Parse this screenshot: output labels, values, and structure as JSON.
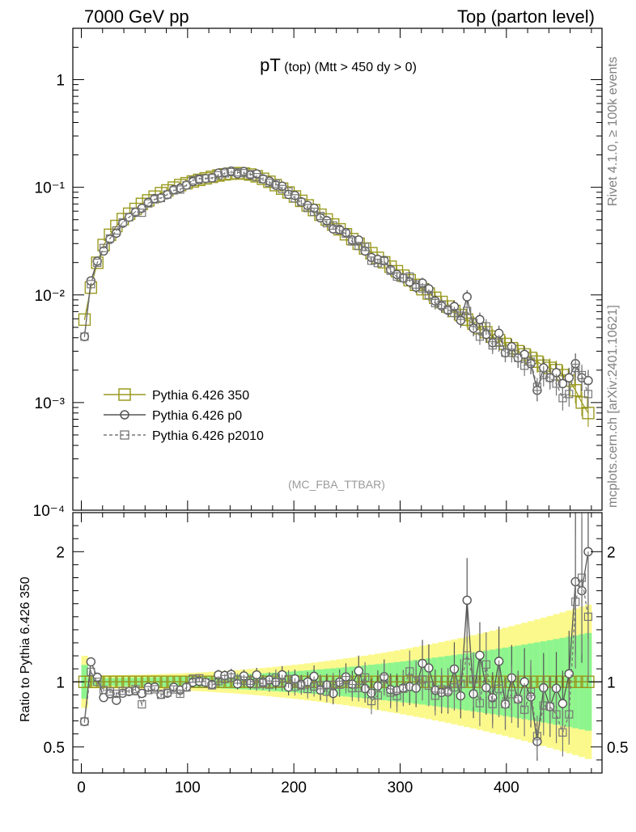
{
  "header": {
    "left": "7000 GeV pp",
    "right": "Top (parton level)"
  },
  "plot_title": {
    "main": "pT",
    "sub1": "(top)",
    "sub2": "(Mtt > 450 dy > 0)"
  },
  "watermark": "(MC_FBA_TTBAR)",
  "side_label_1": "Rivet 4.1.0, ≥ 100k events",
  "side_label_2": "mcplots.cern.ch [arXiv:2401.10621]",
  "ratio_ylabel": "Ratio to Pythia 6.426 350",
  "colors": {
    "s350": "#9a9a20",
    "p0": "#555555",
    "p2010": "#777777",
    "band_yellow": "#fbf98c",
    "band_green": "#8ef58e"
  },
  "chart_data": {
    "type": "line",
    "x": [
      3.0,
      9.0,
      15.0,
      21.0,
      27.0,
      33.0,
      39.0,
      45.0,
      51.0,
      57.0,
      63.0,
      69.0,
      75.0,
      81.0,
      87.0,
      93.0,
      99.0,
      105.0,
      111.0,
      117.0,
      123.0,
      129.0,
      135.0,
      141.0,
      147.0,
      153.0,
      159.0,
      165.0,
      171.0,
      177.0,
      183.0,
      189.0,
      195.0,
      201.0,
      207.0,
      213.0,
      219.0,
      225.0,
      231.0,
      237.0,
      243.0,
      249.0,
      255.0,
      261.0,
      267.0,
      273.0,
      279.0,
      285.0,
      291.0,
      297.0,
      303.0,
      309.0,
      315.0,
      321.0,
      327.0,
      333.0,
      339.0,
      345.0,
      351.0,
      357.0,
      363.0,
      369.0,
      375.0,
      381.0,
      387.0,
      393.0,
      399.0,
      405.0,
      411.0,
      417.0,
      423.0,
      429.0,
      435.0,
      441.0,
      447.0,
      453.0,
      459.0,
      465.0,
      471.0,
      477.0
    ],
    "xlim": [
      -8,
      490
    ],
    "x_ticks": [
      0,
      100,
      200,
      300,
      400
    ],
    "upper_yscale": "log",
    "upper_ylim": [
      0.0001,
      3.0
    ],
    "upper_tick_labels": [
      "10⁻⁴",
      "10⁻³",
      "10⁻²",
      "10⁻¹",
      "1"
    ],
    "ratio_ylim": [
      0.3,
      2.3
    ],
    "ratio_ticks": [
      0.5,
      1,
      2
    ],
    "ratio_tick_labels": [
      "0.5",
      "1",
      "2"
    ],
    "series": [
      {
        "name": "Pythia 6.426 350",
        "style": "solid-square",
        "values": [
          0.0059,
          0.0117,
          0.0199,
          0.0291,
          0.0362,
          0.0437,
          0.0507,
          0.0568,
          0.0629,
          0.0701,
          0.0756,
          0.0819,
          0.0883,
          0.0935,
          0.0993,
          0.1049,
          0.1091,
          0.1133,
          0.1172,
          0.1211,
          0.1251,
          0.1287,
          0.1318,
          0.1338,
          0.1353,
          0.1341,
          0.1313,
          0.1265,
          0.1199,
          0.1126,
          0.1047,
          0.0972,
          0.0895,
          0.0821,
          0.0748,
          0.0679,
          0.0614,
          0.0556,
          0.0502,
          0.0451,
          0.0407,
          0.0366,
          0.033,
          0.0299,
          0.027,
          0.0244,
          0.0221,
          0.0201,
          0.0183,
          0.0166,
          0.0151,
          0.0137,
          0.0124,
          0.0113,
          0.0103,
          0.0094,
          0.0086,
          0.0078,
          0.0071,
          0.0065,
          0.0059,
          0.0054,
          0.0049,
          0.0045,
          0.0041,
          0.0038,
          0.0035,
          0.0032,
          0.003,
          0.0028,
          0.0026,
          0.0024,
          0.0022,
          0.0021,
          0.002,
          0.0018,
          0.0016,
          0.0013,
          0.001,
          0.0008
        ]
      },
      {
        "name": "Pythia 6.426 p0",
        "style": "solid-circle",
        "values": [
          0.0041,
          0.0135,
          0.0206,
          0.0256,
          0.0329,
          0.0375,
          0.0463,
          0.0526,
          0.0586,
          0.0639,
          0.0725,
          0.0786,
          0.0798,
          0.0854,
          0.0952,
          0.0983,
          0.1048,
          0.1129,
          0.1177,
          0.1205,
          0.1225,
          0.1356,
          0.1382,
          0.1415,
          0.1333,
          0.1402,
          0.1299,
          0.1333,
          0.1197,
          0.1143,
          0.1045,
          0.1025,
          0.0859,
          0.084,
          0.0734,
          0.0678,
          0.064,
          0.0521,
          0.049,
          0.0411,
          0.0406,
          0.038,
          0.0324,
          0.0324,
          0.0256,
          0.0223,
          0.0214,
          0.0209,
          0.0172,
          0.0155,
          0.0144,
          0.0132,
          0.0118,
          0.0129,
          0.0114,
          0.0088,
          0.0079,
          0.0072,
          0.0078,
          0.0058,
          0.0096,
          0.0049,
          0.0059,
          0.0043,
          0.0036,
          0.0044,
          0.0029,
          0.0033,
          0.0026,
          0.0028,
          0.0023,
          0.0013,
          0.0021,
          0.0017,
          0.0019,
          0.0015,
          0.0017,
          0.0023,
          0.0017,
          0.0016
        ]
      },
      {
        "name": "Pythia 6.426 p2010",
        "style": "dashed-square",
        "values": [
          0.0041,
          0.0126,
          0.0199,
          0.0273,
          0.0335,
          0.0397,
          0.0472,
          0.0527,
          0.0594,
          0.058,
          0.0708,
          0.0772,
          0.0795,
          0.0858,
          0.0935,
          0.0953,
          0.1044,
          0.1161,
          0.1204,
          0.1207,
          0.1218,
          0.1294,
          0.1346,
          0.1383,
          0.1377,
          0.1353,
          0.1324,
          0.1242,
          0.1188,
          0.1102,
          0.1081,
          0.0964,
          0.0914,
          0.079,
          0.0727,
          0.0642,
          0.0592,
          0.0542,
          0.0464,
          0.0441,
          0.0398,
          0.0371,
          0.0314,
          0.0285,
          0.0279,
          0.0208,
          0.0198,
          0.0206,
          0.0168,
          0.0148,
          0.0143,
          0.0148,
          0.0125,
          0.0115,
          0.01,
          0.0084,
          0.0081,
          0.0073,
          0.0068,
          0.0064,
          0.0071,
          0.0055,
          0.0041,
          0.0051,
          0.0034,
          0.0036,
          0.0029,
          0.0029,
          0.0026,
          0.0022,
          0.0024,
          0.0014,
          0.0018,
          0.0017,
          0.0015,
          0.0011,
          0.0012,
          0.0021,
          0.0018,
          0.0012
        ]
      }
    ]
  }
}
